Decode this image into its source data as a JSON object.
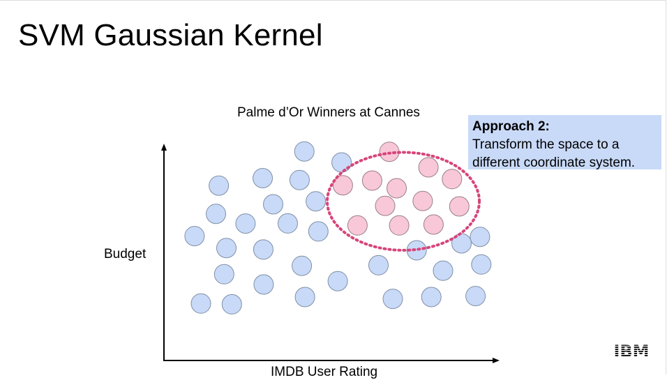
{
  "slide": {
    "title": "SVM Gaussian Kernel",
    "logo": "IBM"
  },
  "callout": {
    "heading": "Approach 2:",
    "body": "Transform the space to a\ndifferent coordinate system."
  },
  "colors": {
    "blue_fill": "#c9daf8",
    "blue_stroke": "#7f8fa6",
    "pink_fill": "#f8c8d8",
    "pink_stroke": "#9a7f88",
    "boundary": "#d6457a",
    "callout_bg": "#c9daf8"
  },
  "chart_data": {
    "type": "scatter",
    "title": "Palme d’Or Winners at Cannes",
    "xlabel": "IMDB User Rating",
    "ylabel": "Budget",
    "xlim": [
      0,
      100
    ],
    "ylim": [
      0,
      100
    ],
    "grid": false,
    "annotations": [
      "dotted circular boundary enclosing the pink class"
    ],
    "series": [
      {
        "name": "",
        "color": "#c9daf8",
        "points": [
          [
            40.4,
            96.2
          ],
          [
            52.1,
            90.3
          ],
          [
            13.5,
            77.9
          ],
          [
            27.3,
            81.9
          ],
          [
            38.9,
            80.9
          ],
          [
            44.0,
            69.5
          ],
          [
            30.6,
            67.9
          ],
          [
            12.6,
            62.8
          ],
          [
            21.9,
            57.6
          ],
          [
            35.2,
            57.7
          ],
          [
            44.8,
            53.4
          ],
          [
            5.9,
            50.9
          ],
          [
            15.9,
            44.5
          ],
          [
            27.5,
            43.7
          ],
          [
            95.6,
            50.5
          ],
          [
            89.8,
            47.0
          ],
          [
            75.7,
            43.3
          ],
          [
            15.2,
            30.5
          ],
          [
            39.6,
            35.0
          ],
          [
            63.7,
            35.3
          ],
          [
            84.0,
            32.4
          ],
          [
            96.0,
            35.7
          ],
          [
            27.6,
            25.0
          ],
          [
            50.9,
            26.8
          ],
          [
            7.9,
            14.8
          ],
          [
            17.6,
            14.4
          ],
          [
            40.6,
            18.3
          ],
          [
            68.2,
            17.3
          ],
          [
            80.3,
            18.3
          ],
          [
            94.2,
            18.8
          ]
        ]
      },
      {
        "name": "",
        "color": "#f8c8d8",
        "points": [
          [
            67.1,
            96.0
          ],
          [
            79.4,
            87.7
          ],
          [
            61.7,
            80.6
          ],
          [
            52.5,
            78.1
          ],
          [
            69.4,
            76.5
          ],
          [
            86.8,
            81.4
          ],
          [
            65.8,
            67.1
          ],
          [
            77.6,
            69.7
          ],
          [
            89.1,
            66.8
          ],
          [
            57.1,
            56.6
          ],
          [
            70.2,
            56.6
          ],
          [
            81.0,
            57.1
          ]
        ]
      }
    ],
    "boundary": {
      "type": "circle",
      "center": [
        71.5,
        69.5
      ],
      "radius_x": 23.9,
      "radius_y": 26.2
    }
  }
}
